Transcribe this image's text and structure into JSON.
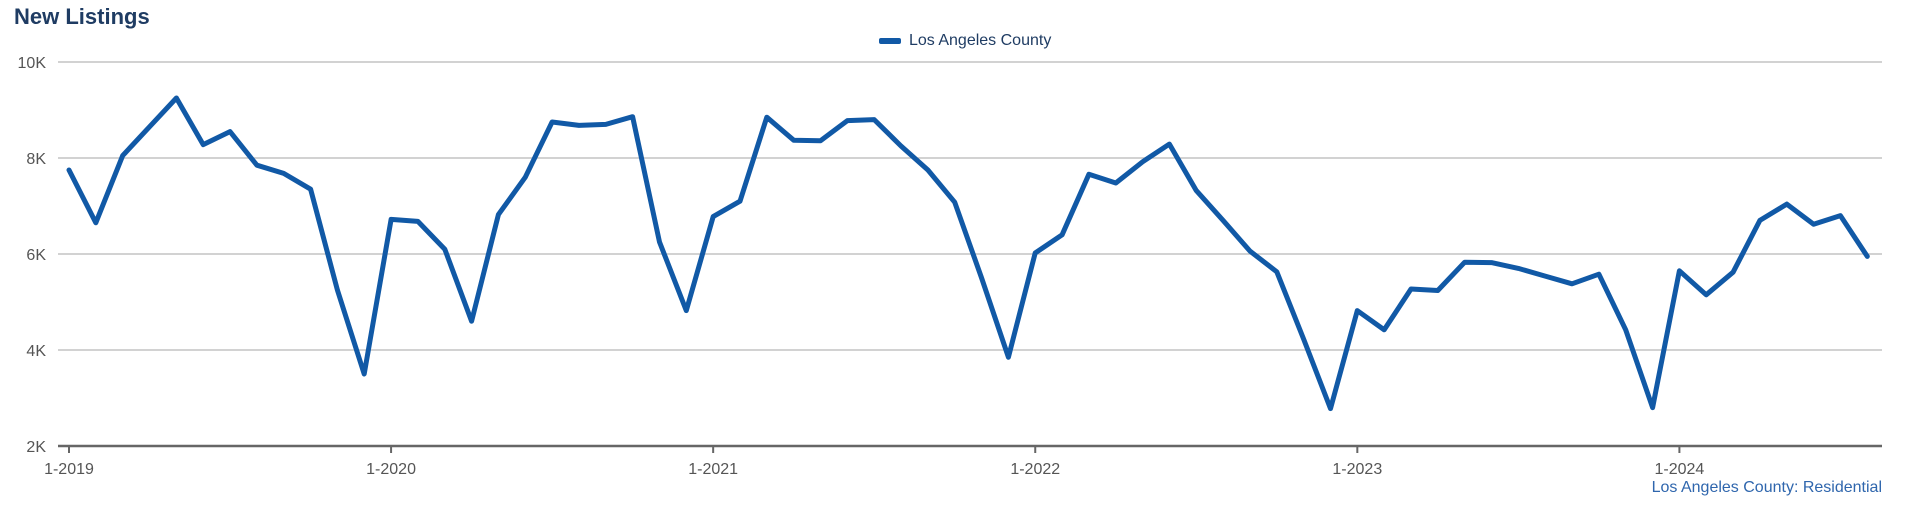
{
  "chart_data": {
    "type": "line",
    "title": "New Listings",
    "xlabel": "",
    "ylabel": "",
    "ylim": [
      2000,
      10000
    ],
    "yticks": [
      {
        "value": 2000,
        "label": "2K"
      },
      {
        "value": 4000,
        "label": "4K"
      },
      {
        "value": 6000,
        "label": "6K"
      },
      {
        "value": 8000,
        "label": "8K"
      },
      {
        "value": 10000,
        "label": "10K"
      }
    ],
    "xticks": [
      {
        "index": 0,
        "label": "1-2019"
      },
      {
        "index": 12,
        "label": "1-2020"
      },
      {
        "index": 24,
        "label": "1-2021"
      },
      {
        "index": 36,
        "label": "1-2022"
      },
      {
        "index": 48,
        "label": "1-2023"
      },
      {
        "index": 60,
        "label": "1-2024"
      }
    ],
    "grid": true,
    "legend_position": "top-center",
    "series": [
      {
        "name": "Los Angeles County",
        "color": "#1159a6",
        "start": "1-2019",
        "values": [
          7750,
          6650,
          8050,
          8650,
          9250,
          8280,
          8550,
          7850,
          7680,
          7350,
          5250,
          3500,
          6720,
          6680,
          6100,
          4600,
          6820,
          7600,
          8750,
          8680,
          8700,
          8860,
          6250,
          4820,
          6780,
          7100,
          8850,
          8370,
          8360,
          8780,
          8800,
          8250,
          7750,
          7080,
          5500,
          3850,
          6020,
          6400,
          7660,
          7480,
          7920,
          8290,
          7320,
          6700,
          6060,
          5630,
          4230,
          2780,
          4820,
          4420,
          5270,
          5240,
          5830,
          5820,
          5700,
          5540,
          5380,
          5580,
          4420,
          2800,
          5650,
          5150,
          5620,
          6700,
          7040,
          6620,
          6800,
          5950
        ]
      }
    ],
    "footnote": "Los Angeles County: Residential"
  }
}
